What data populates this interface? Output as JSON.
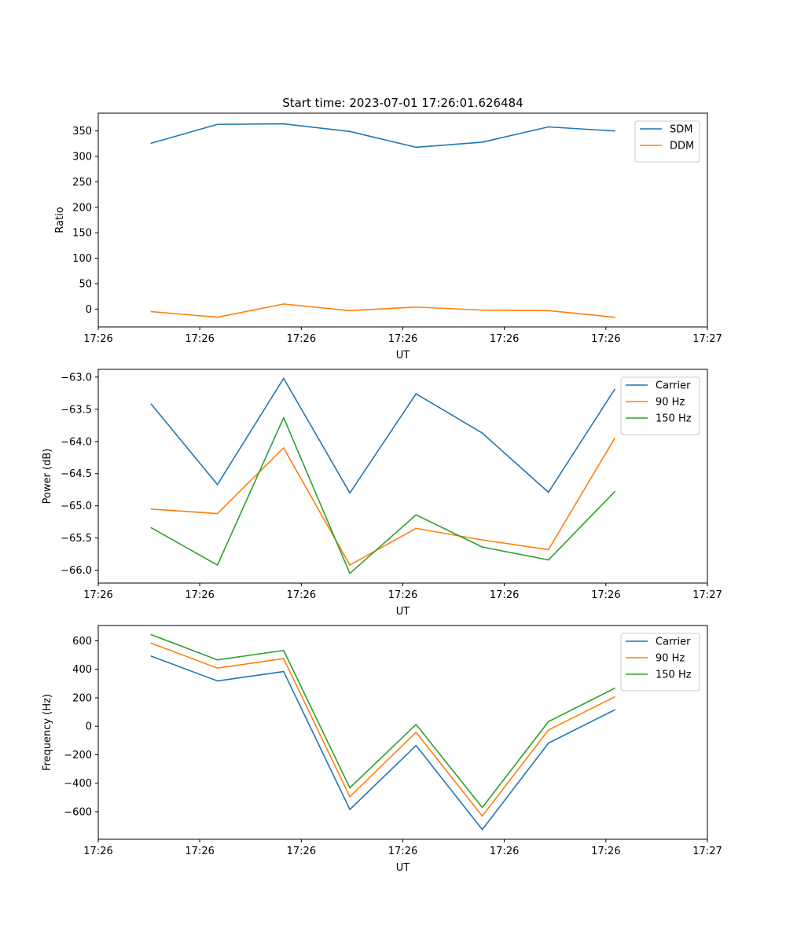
{
  "figure_title": "Start time: 2023-07-01 17:26:01.626484",
  "colors": {
    "blue": "#1f77b4",
    "orange": "#ff7f0e",
    "green": "#2ca02c"
  },
  "chart_data": [
    {
      "type": "line",
      "id": "ratio",
      "xlabel": "UT",
      "ylabel": "Ratio",
      "x": [
        1,
        2,
        3,
        4,
        5,
        6,
        7,
        8
      ],
      "xlim": [
        0.2,
        9.4
      ],
      "xticks": [
        0.2,
        1.733,
        3.267,
        4.8,
        6.333,
        7.867,
        9.4
      ],
      "xtick_labels": [
        "17:26",
        "17:26",
        "17:26",
        "17:26",
        "17:26",
        "17:26",
        "17:27"
      ],
      "ylim": [
        -35,
        385
      ],
      "yticks": [
        0,
        50,
        100,
        150,
        200,
        250,
        300,
        350
      ],
      "ytick_labels": [
        "0",
        "50",
        "100",
        "150",
        "200",
        "250",
        "300",
        "350"
      ],
      "legend_position": "top-right",
      "series": [
        {
          "name": "SDM",
          "color": "#1f77b4",
          "values": [
            326,
            363,
            364,
            349,
            318,
            328,
            358,
            350
          ]
        },
        {
          "name": "DDM",
          "color": "#ff7f0e",
          "values": [
            -5,
            -16,
            10,
            -3,
            4,
            -2,
            -3,
            -16
          ]
        }
      ]
    },
    {
      "type": "line",
      "id": "power",
      "xlabel": "UT",
      "ylabel": "Power (dB)",
      "x": [
        1,
        2,
        3,
        4,
        5,
        6,
        7,
        8
      ],
      "xlim": [
        0.2,
        9.4
      ],
      "xticks": [
        0.2,
        1.733,
        3.267,
        4.8,
        6.333,
        7.867,
        9.4
      ],
      "xtick_labels": [
        "17:26",
        "17:26",
        "17:26",
        "17:26",
        "17:26",
        "17:26",
        "17:27"
      ],
      "ylim": [
        -66.2,
        -62.88
      ],
      "yticks": [
        -66.0,
        -65.5,
        -65.0,
        -64.5,
        -64.0,
        -63.5,
        -63.0
      ],
      "ytick_labels": [
        "−66.0",
        "−65.5",
        "−65.0",
        "−64.5",
        "−64.0",
        "−63.5",
        "−63.0"
      ],
      "legend_position": "top-right",
      "series": [
        {
          "name": "Carrier",
          "color": "#1f77b4",
          "values": [
            -63.42,
            -64.67,
            -63.02,
            -64.8,
            -63.26,
            -63.87,
            -64.79,
            -63.19
          ]
        },
        {
          "name": "90 Hz",
          "color": "#ff7f0e",
          "values": [
            -65.05,
            -65.12,
            -64.1,
            -65.92,
            -65.35,
            -65.53,
            -65.68,
            -63.95
          ]
        },
        {
          "name": "150 Hz",
          "color": "#2ca02c",
          "values": [
            -65.34,
            -65.92,
            -63.63,
            -66.05,
            -65.14,
            -65.64,
            -65.84,
            -64.78
          ]
        }
      ]
    },
    {
      "type": "line",
      "id": "frequency",
      "xlabel": "UT",
      "ylabel": "Frequency (Hz)",
      "x": [
        1,
        2,
        3,
        4,
        5,
        6,
        7,
        8
      ],
      "xlim": [
        0.2,
        9.4
      ],
      "xticks": [
        0.2,
        1.733,
        3.267,
        4.8,
        6.333,
        7.867,
        9.4
      ],
      "xtick_labels": [
        "17:26",
        "17:26",
        "17:26",
        "17:26",
        "17:26",
        "17:26",
        "17:27"
      ],
      "ylim": [
        -793,
        707
      ],
      "yticks": [
        -600,
        -400,
        -200,
        0,
        200,
        400,
        600
      ],
      "ytick_labels": [
        "−600",
        "−400",
        "−200",
        "0",
        "200",
        "400",
        "600"
      ],
      "legend_position": "top-right",
      "series": [
        {
          "name": "Carrier",
          "color": "#1f77b4",
          "values": [
            492,
            318,
            384,
            -584,
            -135,
            -725,
            -118,
            115
          ]
        },
        {
          "name": "90 Hz",
          "color": "#ff7f0e",
          "values": [
            583,
            408,
            475,
            -495,
            -42,
            -630,
            -26,
            206
          ]
        },
        {
          "name": "150 Hz",
          "color": "#2ca02c",
          "values": [
            643,
            466,
            532,
            -432,
            13,
            -570,
            33,
            267
          ]
        }
      ]
    }
  ]
}
